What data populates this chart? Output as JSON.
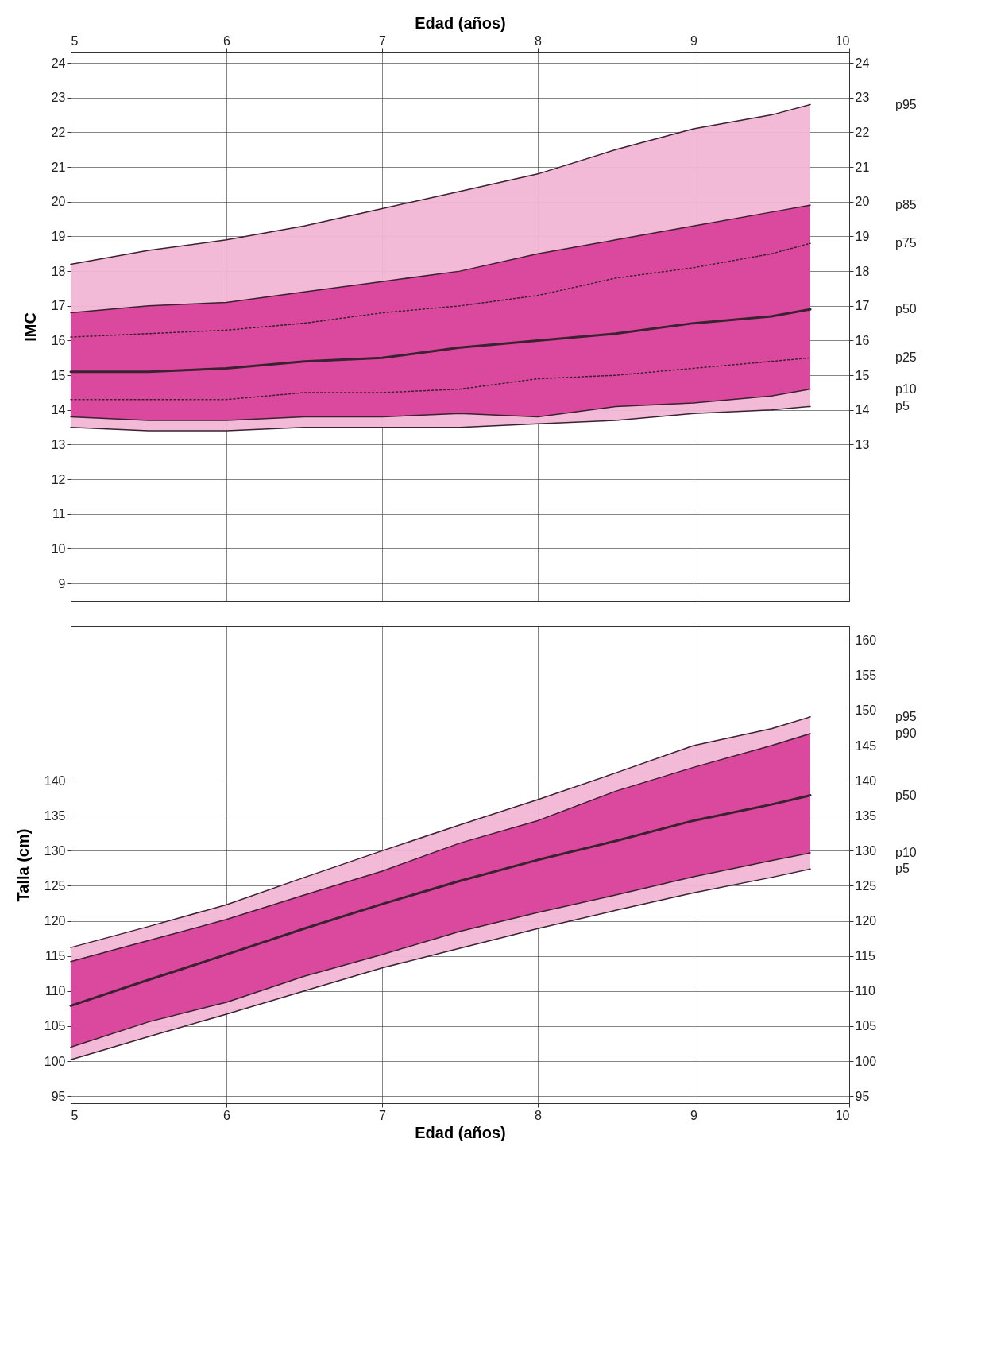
{
  "chart_data": [
    {
      "type": "line",
      "ylabel": "IMC",
      "x2label": "Edad (años)",
      "xlim": [
        5,
        10
      ],
      "x2lim": [
        5,
        10
      ],
      "x2ticks": [
        5,
        6,
        7,
        8,
        9,
        10
      ],
      "ylim": [
        8.5,
        24.3
      ],
      "yticks": [
        9,
        10,
        11,
        12,
        13,
        14,
        15,
        16,
        17,
        18,
        19,
        20,
        21,
        22,
        23,
        24
      ],
      "y2lim": [
        8.5,
        24.3
      ],
      "y2ticks": [
        13,
        14,
        15,
        16,
        17,
        18,
        19,
        20,
        21,
        22,
        23,
        24
      ],
      "tick_labels": "y",
      "grid": true,
      "legend": false,
      "x": [
        5,
        5.5,
        6,
        6.5,
        7,
        7.5,
        8,
        8.5,
        9,
        9.5,
        9.75
      ],
      "series": [
        {
          "name": "p95",
          "color": "#3a2230",
          "line_style": "solid",
          "values": [
            18.2,
            18.6,
            18.9,
            19.3,
            19.8,
            20.3,
            20.8,
            21.5,
            22.1,
            22.5,
            22.8
          ],
          "lower": [
            13.5,
            13.4,
            13.4,
            13.5,
            13.5,
            13.5,
            13.6,
            13.7,
            13.9,
            14.0,
            14.1
          ],
          "upper": [
            18.2,
            18.6,
            18.9,
            19.3,
            19.8,
            20.3,
            20.8,
            21.5,
            22.1,
            22.5,
            22.8
          ]
        },
        {
          "name": "p85",
          "color": "#3a2230",
          "line_style": "solid",
          "values": [
            16.8,
            17.0,
            17.1,
            17.4,
            17.7,
            18.0,
            18.5,
            18.9,
            19.3,
            19.7,
            19.9
          ]
        },
        {
          "name": "p75",
          "color": "#3a2230",
          "line_style": "dotted",
          "values": [
            16.1,
            16.2,
            16.3,
            16.5,
            16.8,
            17.0,
            17.3,
            17.8,
            18.1,
            18.5,
            18.8
          ]
        },
        {
          "name": "p50",
          "color": "#3a2230",
          "line_style": "solid",
          "values": [
            15.1,
            15.1,
            15.2,
            15.4,
            15.5,
            15.8,
            16.0,
            16.2,
            16.5,
            16.7,
            16.9
          ],
          "lower": [
            13.8,
            13.7,
            13.7,
            13.8,
            13.8,
            13.9,
            13.8,
            14.1,
            14.2,
            14.4,
            14.6
          ],
          "upper": [
            16.8,
            17.0,
            17.1,
            17.4,
            17.7,
            18.0,
            18.5,
            18.9,
            19.3,
            19.7,
            19.9
          ]
        },
        {
          "name": "p25",
          "color": "#3a2230",
          "line_style": "dotted",
          "values": [
            14.3,
            14.3,
            14.3,
            14.5,
            14.5,
            14.6,
            14.9,
            15.0,
            15.2,
            15.4,
            15.5
          ]
        },
        {
          "name": "p10",
          "color": "#3a2230",
          "line_style": "solid",
          "values": [
            13.8,
            13.7,
            13.7,
            13.8,
            13.8,
            13.9,
            13.8,
            14.1,
            14.2,
            14.4,
            14.6
          ]
        },
        {
          "name": "p5",
          "color": "#3a2230",
          "line_style": "solid",
          "values": [
            13.5,
            13.4,
            13.4,
            13.5,
            13.5,
            13.5,
            13.6,
            13.7,
            13.9,
            14.0,
            14.1
          ]
        }
      ]
    },
    {
      "type": "line",
      "ylabel": "Talla (cm)",
      "xlabel": "Edad (años)",
      "xlim": [
        5,
        10
      ],
      "xticks": [
        5,
        6,
        7,
        8,
        9,
        10
      ],
      "ylim": [
        94,
        162
      ],
      "yticks": [
        95,
        100,
        105,
        110,
        115,
        120,
        125,
        130,
        135,
        140
      ],
      "y2lim": [
        94,
        162
      ],
      "y2ticks": [
        95,
        100,
        105,
        110,
        115,
        120,
        125,
        130,
        135,
        140,
        145,
        150,
        155,
        160
      ],
      "grid": true,
      "legend": false,
      "x": [
        5,
        5.5,
        6,
        6.5,
        7,
        7.5,
        8,
        8.5,
        9,
        9.5,
        9.75
      ],
      "series": [
        {
          "name": "p95",
          "color": "#3a2230",
          "line_style": "solid",
          "values": [
            116.2,
            119.2,
            122.3,
            126.2,
            130.0,
            133.7,
            137.3,
            141.1,
            145.0,
            147.4,
            149.1
          ],
          "lower": [
            100.2,
            103.5,
            106.7,
            110.0,
            113.3,
            116.1,
            118.9,
            121.5,
            124.0,
            126.2,
            127.4
          ],
          "upper": [
            116.2,
            119.2,
            122.3,
            126.2,
            130.0,
            133.7,
            137.3,
            141.1,
            145.0,
            147.4,
            149.1
          ]
        },
        {
          "name": "p90",
          "color": "#3a2230",
          "line_style": "solid",
          "values": [
            114.2,
            117.2,
            120.2,
            123.7,
            127.1,
            131.1,
            134.3,
            138.5,
            141.9,
            145.0,
            146.7
          ]
        },
        {
          "name": "p50",
          "color": "#3a2230",
          "line_style": "solid",
          "values": [
            107.9,
            111.6,
            115.2,
            118.9,
            122.4,
            125.7,
            128.7,
            131.4,
            134.3,
            136.6,
            137.9
          ],
          "lower": [
            102.0,
            105.6,
            108.4,
            112.1,
            115.2,
            118.5,
            121.2,
            123.7,
            126.3,
            128.6,
            129.7
          ],
          "upper": [
            114.2,
            117.2,
            120.2,
            123.7,
            127.1,
            131.1,
            134.3,
            138.5,
            141.9,
            145.0,
            146.7
          ]
        },
        {
          "name": "p10",
          "color": "#3a2230",
          "line_style": "solid",
          "values": [
            102.0,
            105.6,
            108.4,
            112.1,
            115.2,
            118.5,
            121.2,
            123.7,
            126.3,
            128.6,
            129.7
          ]
        },
        {
          "name": "p5",
          "color": "#3a2230",
          "line_style": "solid",
          "values": [
            100.2,
            103.5,
            106.7,
            110.0,
            113.3,
            116.1,
            118.9,
            121.5,
            124.0,
            126.2,
            127.4
          ]
        }
      ]
    }
  ]
}
